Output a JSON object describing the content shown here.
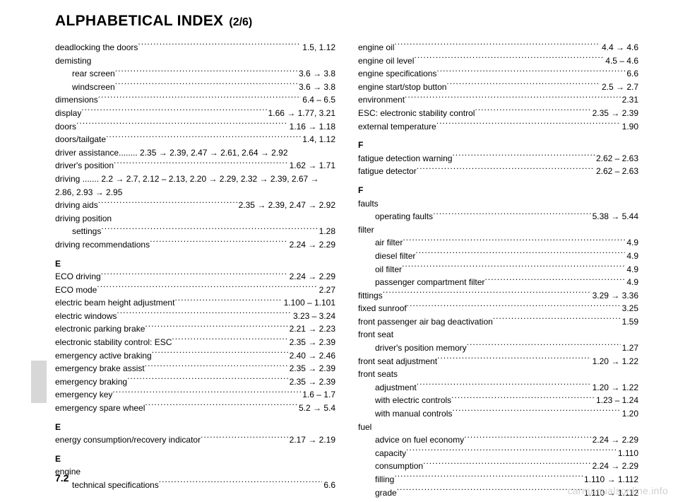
{
  "header": {
    "title": "ALPHABETICAL INDEX",
    "part": "(2/6)"
  },
  "page_number": "7.2",
  "watermark": "carmanualsonline.info",
  "left": [
    {
      "label": "deadlocking the doors",
      "ref": "1.5, 1.12"
    },
    {
      "label": "demisting",
      "heading": true
    },
    {
      "label": "rear screen",
      "ref": "3.6 → 3.8",
      "indent": true
    },
    {
      "label": "windscreen",
      "ref": "3.6 → 3.8",
      "indent": true
    },
    {
      "label": "dimensions",
      "ref": "6.4 – 6.5"
    },
    {
      "label": "display",
      "ref": "1.66 → 1.77, 3.21"
    },
    {
      "label": "doors",
      "ref": "1.16 → 1.18"
    },
    {
      "label": "doors/tailgate",
      "ref": "1.4, 1.12"
    },
    {
      "label": "driver assistance........ 2.35 → 2.39, 2.47 → 2.61, 2.64 → 2.92",
      "wrap": true
    },
    {
      "label": "driver's position",
      "ref": "1.62 → 1.71"
    },
    {
      "label": "driving ....... 2.2 → 2.7, 2.12 – 2.13, 2.20 → 2.29, 2.32 → 2.39, 2.67 → 2.86, 2.93 → 2.95",
      "wrap": true
    },
    {
      "label": "driving aids",
      "ref": "2.35 → 2.39, 2.47 → 2.92"
    },
    {
      "label": "driving position",
      "heading": true
    },
    {
      "label": "settings",
      "ref": "1.28",
      "indent": true
    },
    {
      "label": "driving recommendations",
      "ref": "2.24 → 2.29"
    },
    {
      "section": "E"
    },
    {
      "label": "ECO driving",
      "ref": "2.24 → 2.29"
    },
    {
      "label": "ECO mode",
      "ref": "2.27"
    },
    {
      "label": "electric beam height adjustment",
      "ref": "1.100 – 1.101"
    },
    {
      "label": "electric windows",
      "ref": "3.23 – 3.24"
    },
    {
      "label": "electronic parking brake",
      "ref": "2.21 → 2.23"
    },
    {
      "label": "electronic stability control: ESC",
      "ref": "2.35 → 2.39"
    },
    {
      "label": "emergency active braking",
      "ref": "2.40 → 2.46"
    },
    {
      "label": "emergency brake assist",
      "ref": "2.35 → 2.39"
    },
    {
      "label": "emergency braking",
      "ref": "2.35 → 2.39"
    },
    {
      "label": "emergency key",
      "ref": "1.6 – 1.7"
    },
    {
      "label": "emergency spare wheel",
      "ref": "5.2 → 5.4"
    },
    {
      "section": "E"
    },
    {
      "label": "energy consumption/recovery indicator",
      "ref": "2.17 → 2.19"
    },
    {
      "section": "E"
    },
    {
      "label": "engine",
      "heading": true
    },
    {
      "label": "technical specifications",
      "ref": "6.6",
      "indent": true
    }
  ],
  "right": [
    {
      "label": "engine oil",
      "ref": "4.4 → 4.6"
    },
    {
      "label": "engine oil level",
      "ref": "4.5 – 4.6"
    },
    {
      "label": "engine specifications",
      "ref": "6.6"
    },
    {
      "label": "engine start/stop button",
      "ref": "2.5 → 2.7"
    },
    {
      "label": "environment",
      "ref": "2.31"
    },
    {
      "label": "ESC: electronic stability control",
      "ref": "2.35 → 2.39"
    },
    {
      "label": "external temperature",
      "ref": "1.90"
    },
    {
      "section": "F"
    },
    {
      "label": "fatigue detection warning",
      "ref": "2.62 – 2.63"
    },
    {
      "label": "fatigue detector",
      "ref": "2.62 – 2.63"
    },
    {
      "section": "F"
    },
    {
      "label": "faults",
      "heading": true
    },
    {
      "label": "operating faults",
      "ref": "5.38 → 5.44",
      "indent": true
    },
    {
      "label": "filter",
      "heading": true
    },
    {
      "label": "air filter",
      "ref": "4.9",
      "indent": true
    },
    {
      "label": "diesel filter",
      "ref": "4.9",
      "indent": true
    },
    {
      "label": "oil filter",
      "ref": "4.9",
      "indent": true
    },
    {
      "label": "passenger compartment filter",
      "ref": "4.9",
      "indent": true
    },
    {
      "label": "fittings",
      "ref": "3.29 → 3.36"
    },
    {
      "label": "fixed sunroof",
      "ref": "3.25"
    },
    {
      "label": "front passenger air bag deactivation",
      "ref": "1.59"
    },
    {
      "label": "front seat",
      "heading": true
    },
    {
      "label": "driver's position memory",
      "ref": "1.27",
      "indent": true
    },
    {
      "label": "front seat adjustment",
      "ref": "1.20 → 1.22"
    },
    {
      "label": "front seats",
      "heading": true
    },
    {
      "label": "adjustment",
      "ref": "1.20 → 1.22",
      "indent": true
    },
    {
      "label": "with electric controls",
      "ref": "1.23 – 1.24",
      "indent": true
    },
    {
      "label": "with manual controls",
      "ref": "1.20",
      "indent": true
    },
    {
      "label": "fuel",
      "heading": true
    },
    {
      "label": "advice on fuel economy",
      "ref": "2.24 → 2.29",
      "indent": true
    },
    {
      "label": "capacity",
      "ref": "1.110",
      "indent": true
    },
    {
      "label": "consumption",
      "ref": "2.24 → 2.29",
      "indent": true
    },
    {
      "label": "filling",
      "ref": "1.110 → 1.112",
      "indent": true
    },
    {
      "label": "grade",
      "ref": "1.110 → 1.112",
      "indent": true
    }
  ]
}
